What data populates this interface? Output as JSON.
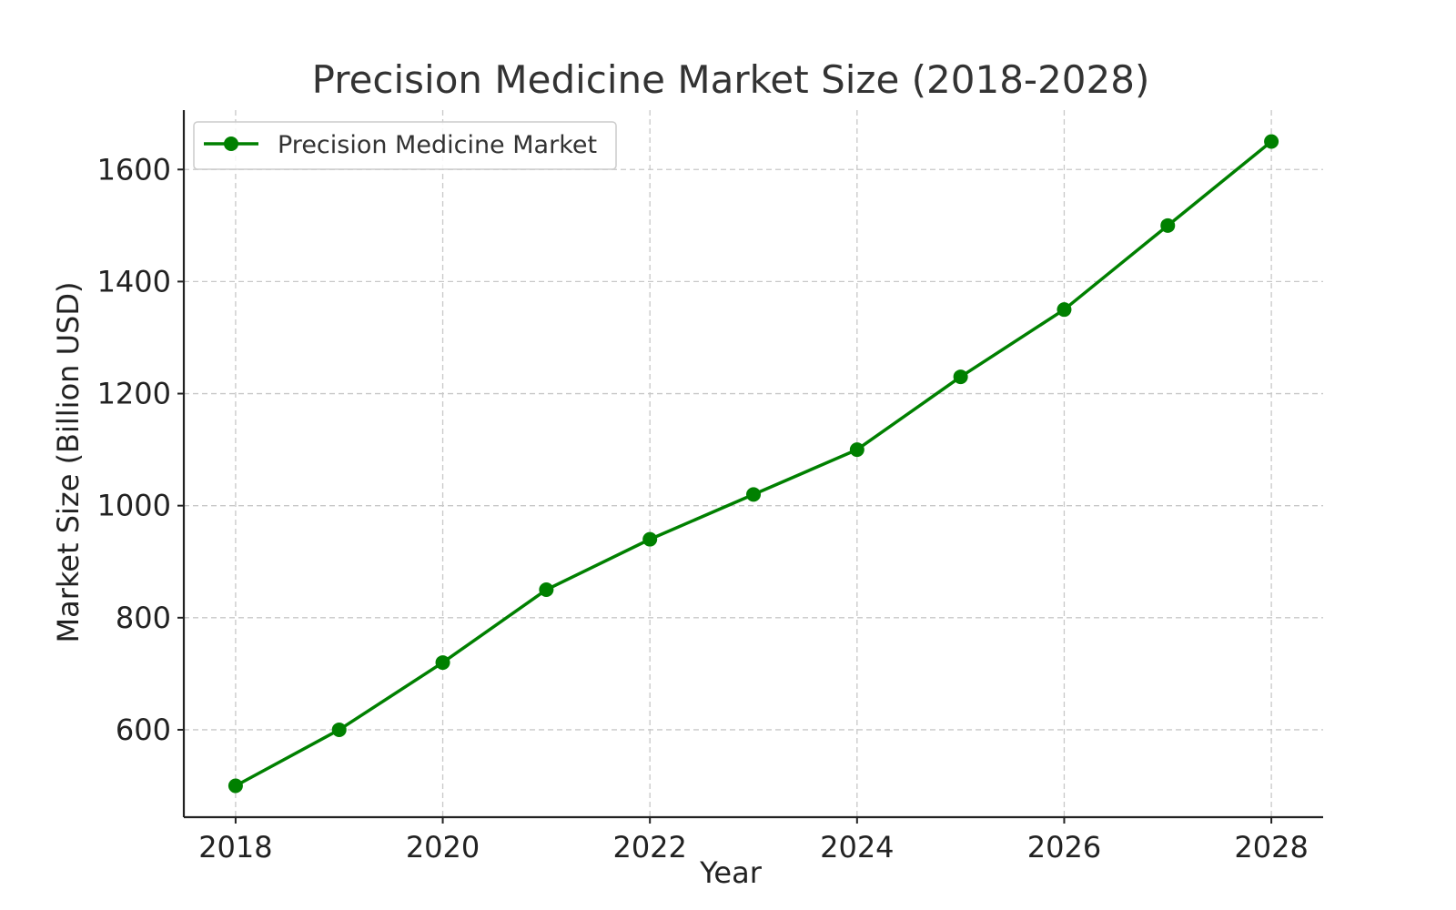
{
  "chart_data": {
    "type": "line",
    "title": "Precision Medicine Market Size (2018-2028)",
    "xlabel": "Year",
    "ylabel": "Market Size (Billion USD)",
    "x": [
      2018,
      2019,
      2020,
      2021,
      2022,
      2023,
      2024,
      2025,
      2026,
      2027,
      2028
    ],
    "series": [
      {
        "name": "Precision Medicine Market",
        "values": [
          500,
          600,
          720,
          850,
          940,
          1020,
          1100,
          1230,
          1350,
          1500,
          1650
        ],
        "color": "#008000",
        "marker": "circle"
      }
    ],
    "xlim": [
      2017.5,
      2028.5
    ],
    "ylim": [
      444,
      1706
    ],
    "xticks": [
      "2018",
      "2020",
      "2022",
      "2024",
      "2026",
      "2028"
    ],
    "yticks": [
      "600",
      "800",
      "1000",
      "1200",
      "1400",
      "1600"
    ],
    "grid": true,
    "legend_position": "top-left"
  }
}
